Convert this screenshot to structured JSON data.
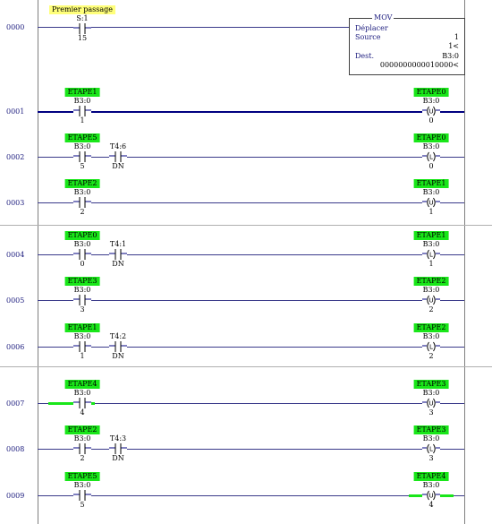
{
  "rungs": [
    {
      "number": "0000",
      "y": 0,
      "inputs": [
        {
          "tag": "Premier passage",
          "tag_color": "yellow",
          "address": "S:1",
          "bit": "15",
          "type": "xic"
        }
      ],
      "mov": {
        "title": "MOV",
        "name": "Déplacer",
        "source_label": "Source",
        "source_value": "1",
        "source_value2": "1<",
        "dest_label": "Dest.",
        "dest_value": "B3:0",
        "dest_bits": "0000000000010000<"
      }
    },
    {
      "number": "0001",
      "active": true,
      "inputs": [
        {
          "tag": "ETAPE1",
          "address": "B3:0",
          "bit": "1",
          "type": "xic"
        }
      ],
      "output": {
        "tag": "ETAPE0",
        "address": "B3:0",
        "bit": "0",
        "type": "U"
      }
    },
    {
      "number": "0002",
      "inputs": [
        {
          "tag": "ETAPE5",
          "address": "B3:0",
          "bit": "5",
          "type": "xic"
        },
        {
          "tag": "",
          "address": "T4:6",
          "bit": "DN",
          "type": "xic"
        }
      ],
      "output": {
        "tag": "ETAPE0",
        "address": "B3:0",
        "bit": "0",
        "type": "L"
      }
    },
    {
      "number": "0003",
      "inputs": [
        {
          "tag": "ETAPE2",
          "address": "B3:0",
          "bit": "2",
          "type": "xic"
        }
      ],
      "output": {
        "tag": "ETAPE1",
        "address": "B3:0",
        "bit": "1",
        "type": "U"
      }
    },
    {
      "number": "0004",
      "inputs": [
        {
          "tag": "ETAPE0",
          "address": "B3:0",
          "bit": "0",
          "type": "xic"
        },
        {
          "tag": "",
          "address": "T4:1",
          "bit": "DN",
          "type": "xic"
        }
      ],
      "output": {
        "tag": "ETAPE1",
        "address": "B3:0",
        "bit": "1",
        "type": "L"
      }
    },
    {
      "number": "0005",
      "inputs": [
        {
          "tag": "ETAPE3",
          "address": "B3:0",
          "bit": "3",
          "type": "xic"
        }
      ],
      "output": {
        "tag": "ETAPE2",
        "address": "B3:0",
        "bit": "2",
        "type": "U"
      }
    },
    {
      "number": "0006",
      "inputs": [
        {
          "tag": "ETAPE1",
          "address": "B3:0",
          "bit": "1",
          "type": "xic"
        },
        {
          "tag": "",
          "address": "T4:2",
          "bit": "DN",
          "type": "xic"
        }
      ],
      "output": {
        "tag": "ETAPE2",
        "address": "B3:0",
        "bit": "2",
        "type": "L"
      }
    },
    {
      "number": "0007",
      "inputs": [
        {
          "tag": "ETAPE4",
          "address": "B3:0",
          "bit": "4",
          "type": "xic",
          "energized": true
        }
      ],
      "output": {
        "tag": "ETAPE3",
        "address": "B3:0",
        "bit": "3",
        "type": "U"
      }
    },
    {
      "number": "0008",
      "inputs": [
        {
          "tag": "ETAPE2",
          "address": "B3:0",
          "bit": "2",
          "type": "xic"
        },
        {
          "tag": "",
          "address": "T4:3",
          "bit": "DN",
          "type": "xic"
        }
      ],
      "output": {
        "tag": "ETAPE3",
        "address": "B3:0",
        "bit": "3",
        "type": "L"
      }
    },
    {
      "number": "0009",
      "inputs": [
        {
          "tag": "ETAPE5",
          "address": "B3:0",
          "bit": "5",
          "type": "xic"
        }
      ],
      "output": {
        "tag": "ETAPE4",
        "address": "B3:0",
        "bit": "4",
        "type": "U",
        "energized": true
      }
    }
  ],
  "colors": {
    "tag_green": "#19e619",
    "tag_yellow": "#ffff7a",
    "rung_line": "#000080"
  }
}
